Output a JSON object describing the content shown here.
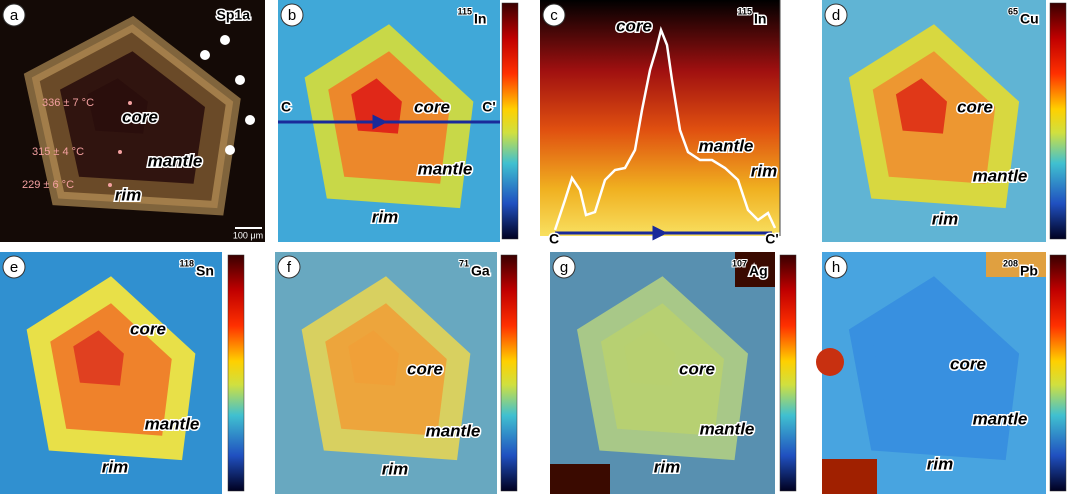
{
  "panels": [
    {
      "label": "a",
      "tag": "Sp1a",
      "core": "core",
      "mantle": "mantle",
      "rim": "rim",
      "temperatures": [
        "336 ± 7 °C",
        "315 ± 4 °C",
        "229 ± 6 °C"
      ],
      "scale_bar": "100 μm"
    },
    {
      "label": "b",
      "isotope": {
        "mass": "115",
        "element": "In"
      },
      "core": "core",
      "mantle": "mantle",
      "rim": "rim",
      "profile": {
        "start": "C",
        "end": "C'"
      }
    },
    {
      "label": "c",
      "isotope": {
        "mass": "115",
        "element": "In"
      },
      "core": "core",
      "mantle": "mantle",
      "rim": "rim",
      "profile": {
        "start": "C",
        "end": "C'"
      }
    },
    {
      "label": "d",
      "isotope": {
        "mass": "65",
        "element": "Cu"
      },
      "core": "core",
      "mantle": "mantle",
      "rim": "rim"
    },
    {
      "label": "e",
      "isotope": {
        "mass": "118",
        "element": "Sn"
      },
      "core": "core",
      "mantle": "mantle",
      "rim": "rim"
    },
    {
      "label": "f",
      "isotope": {
        "mass": "71",
        "element": "Ga"
      },
      "core": "core",
      "mantle": "mantle",
      "rim": "rim"
    },
    {
      "label": "g",
      "isotope": {
        "mass": "107",
        "element": "Ag"
      },
      "core": "core",
      "mantle": "mantle",
      "rim": "rim"
    },
    {
      "label": "h",
      "isotope": {
        "mass": "208",
        "element": "Pb"
      },
      "core": "core",
      "mantle": "mantle",
      "rim": "rim"
    }
  ]
}
